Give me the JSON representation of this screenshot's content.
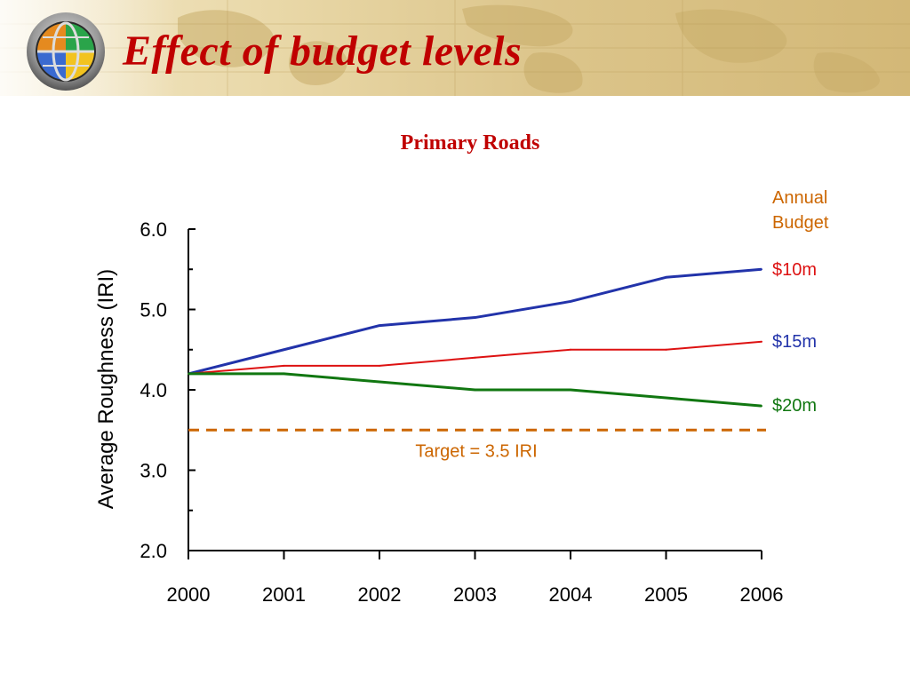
{
  "slide": {
    "title": "Effect of budget levels"
  },
  "colors": {
    "title": "#c00000",
    "series_10m": "#2233aa",
    "series_15m": "#dd1111",
    "series_20m": "#117711",
    "target": "#cc6600",
    "legend_head": "#cc6600"
  },
  "logo": {
    "icon": "globe-icon"
  },
  "chart_data": {
    "type": "line",
    "title": "Primary Roads",
    "xlabel": "",
    "ylabel": "Average Roughness (IRI)",
    "ylim": [
      2.0,
      6.0
    ],
    "yticks": [
      "2.0",
      "3.0",
      "4.0",
      "5.0",
      "6.0"
    ],
    "x": [
      "2000",
      "2001",
      "2002",
      "2003",
      "2004",
      "2005",
      "2006"
    ],
    "legend_title": [
      "Annual",
      "Budget"
    ],
    "series": [
      {
        "name": "$10m",
        "color": "#2233aa",
        "values": [
          4.2,
          4.5,
          4.8,
          4.9,
          5.1,
          5.4,
          5.5
        ]
      },
      {
        "name": "$15m",
        "color": "#dd1111",
        "values": [
          4.2,
          4.3,
          4.3,
          4.4,
          4.5,
          4.5,
          4.6
        ]
      },
      {
        "name": "$20m",
        "color": "#117711",
        "values": [
          4.2,
          4.2,
          4.1,
          4.0,
          4.0,
          3.9,
          3.8
        ]
      }
    ],
    "target": {
      "value": 3.5,
      "label": "Target = 3.5 IRI",
      "style": "dashed"
    },
    "grid": false
  }
}
